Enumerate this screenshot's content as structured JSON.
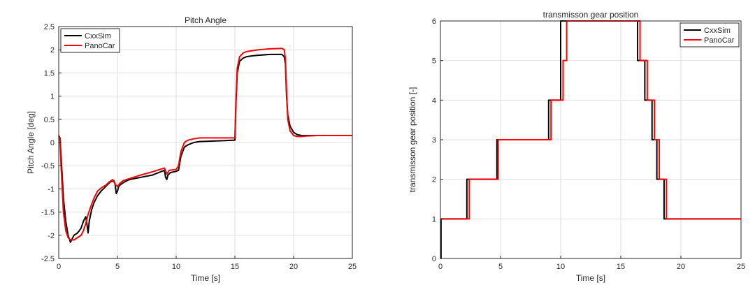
{
  "chart_data": [
    {
      "type": "line",
      "title": "Pitch Angle",
      "xlabel": "Time [s]",
      "ylabel": "Pitch Angle [deg]",
      "xlim": [
        0,
        25
      ],
      "ylim": [
        -2.5,
        2.5
      ],
      "xticks": [
        0,
        5,
        10,
        15,
        20,
        25
      ],
      "yticks": [
        -2.5,
        -2,
        -1.5,
        -1,
        -0.5,
        0,
        0.5,
        1,
        1.5,
        2,
        2.5
      ],
      "grid": true,
      "legend": "top-left",
      "series": [
        {
          "name": "CxxSim",
          "color": "#000000",
          "x": [
            0,
            0.1,
            0.2,
            0.4,
            0.6,
            0.8,
            1.0,
            1.3,
            1.6,
            1.9,
            2.1,
            2.3,
            2.4,
            2.5,
            2.6,
            2.8,
            3.0,
            3.3,
            3.6,
            4.0,
            4.4,
            4.7,
            4.8,
            4.9,
            5.0,
            5.1,
            5.3,
            5.6,
            6.0,
            7.0,
            8.0,
            9.0,
            9.1,
            9.2,
            9.3,
            9.5,
            10.0,
            10.2,
            10.4,
            10.7,
            11.0,
            11.5,
            12,
            13,
            14,
            15,
            15.1,
            15.2,
            15.4,
            15.7,
            16,
            16.5,
            17,
            18,
            19,
            19.2,
            19.3,
            19.4,
            19.5,
            19.7,
            20.0,
            20.3,
            20.7,
            21,
            22,
            23,
            24,
            25
          ],
          "y": [
            0.15,
            0.1,
            -0.3,
            -1.2,
            -1.7,
            -2.0,
            -2.15,
            -2.0,
            -1.95,
            -1.85,
            -1.7,
            -1.6,
            -1.75,
            -1.95,
            -1.7,
            -1.45,
            -1.3,
            -1.15,
            -1.05,
            -0.95,
            -0.85,
            -0.82,
            -0.9,
            -1.1,
            -1.05,
            -0.95,
            -0.9,
            -0.85,
            -0.8,
            -0.75,
            -0.7,
            -0.6,
            -0.75,
            -0.8,
            -0.7,
            -0.65,
            -0.62,
            -0.6,
            -0.3,
            -0.1,
            -0.05,
            0.0,
            0.02,
            0.03,
            0.04,
            0.05,
            0.9,
            1.5,
            1.75,
            1.82,
            1.85,
            1.87,
            1.88,
            1.9,
            1.9,
            1.85,
            1.7,
            1.0,
            0.6,
            0.35,
            0.22,
            0.17,
            0.15,
            0.15,
            0.15,
            0.15,
            0.15,
            0.15
          ]
        },
        {
          "name": "PanoCar",
          "color": "#ff0000",
          "x": [
            0,
            0.1,
            0.2,
            0.4,
            0.6,
            0.8,
            1.0,
            1.3,
            1.6,
            1.9,
            2.1,
            2.3,
            2.5,
            2.7,
            3.0,
            3.3,
            3.6,
            4.0,
            4.3,
            4.6,
            4.8,
            5.0,
            5.2,
            5.5,
            6.0,
            7.0,
            8.0,
            9.0,
            9.2,
            9.4,
            10.0,
            10.2,
            10.4,
            10.7,
            11.0,
            11.5,
            12,
            13,
            14,
            15,
            15.1,
            15.2,
            15.4,
            15.7,
            16,
            16.5,
            17,
            18,
            19,
            19.2,
            19.3,
            19.4,
            19.5,
            19.7,
            20.0,
            20.3,
            20.7,
            21,
            22,
            23,
            24,
            25
          ],
          "y": [
            0.15,
            0.05,
            -0.5,
            -1.5,
            -1.9,
            -2.05,
            -2.1,
            -2.1,
            -2.05,
            -2.0,
            -1.9,
            -1.75,
            -1.55,
            -1.4,
            -1.2,
            -1.05,
            -0.98,
            -0.92,
            -0.85,
            -0.8,
            -0.9,
            -0.95,
            -0.88,
            -0.82,
            -0.78,
            -0.7,
            -0.63,
            -0.55,
            -0.68,
            -0.6,
            -0.58,
            -0.5,
            -0.2,
            0.0,
            0.05,
            0.08,
            0.1,
            0.1,
            0.1,
            0.1,
            1.0,
            1.6,
            1.85,
            1.93,
            1.96,
            1.98,
            2.0,
            2.02,
            2.03,
            2.0,
            1.8,
            1.1,
            0.5,
            0.25,
            0.15,
            0.13,
            0.13,
            0.14,
            0.15,
            0.15,
            0.15,
            0.15
          ]
        }
      ]
    },
    {
      "type": "line",
      "title": "transmisson gear position",
      "xlabel": "Time [s]",
      "ylabel": "transmisson gear position [-]",
      "xlim": [
        0,
        25
      ],
      "ylim": [
        0,
        6
      ],
      "xticks": [
        0,
        5,
        10,
        15,
        20,
        25
      ],
      "yticks": [
        0,
        1,
        2,
        3,
        4,
        5,
        6
      ],
      "grid": true,
      "legend": "top-right",
      "series": [
        {
          "name": "CxxSim",
          "color": "#000000",
          "x": [
            0,
            0.05,
            0.05,
            2.2,
            2.2,
            4.7,
            4.7,
            9.0,
            9.0,
            10.0,
            10.0,
            16.4,
            16.4,
            17.0,
            17.0,
            17.6,
            17.6,
            18.0,
            18.0,
            18.3,
            18.3,
            18.6,
            18.6,
            25
          ],
          "y": [
            0,
            0,
            1,
            1,
            2,
            2,
            3,
            3,
            4,
            4,
            6,
            6,
            5,
            5,
            4,
            4,
            3,
            3,
            2,
            2,
            2,
            2,
            1,
            1
          ]
        },
        {
          "name": "PanoCar",
          "color": "#ff0000",
          "x": [
            0,
            2.4,
            2.4,
            4.8,
            4.8,
            9.2,
            9.2,
            10.2,
            10.2,
            10.5,
            10.5,
            16.6,
            16.6,
            17.2,
            17.2,
            17.8,
            17.8,
            18.2,
            18.2,
            18.8,
            18.8,
            25
          ],
          "y": [
            1,
            1,
            2,
            2,
            3,
            3,
            4,
            4,
            5,
            5,
            6,
            6,
            5,
            5,
            4,
            4,
            3,
            3,
            2,
            2,
            1,
            1
          ]
        }
      ]
    }
  ]
}
